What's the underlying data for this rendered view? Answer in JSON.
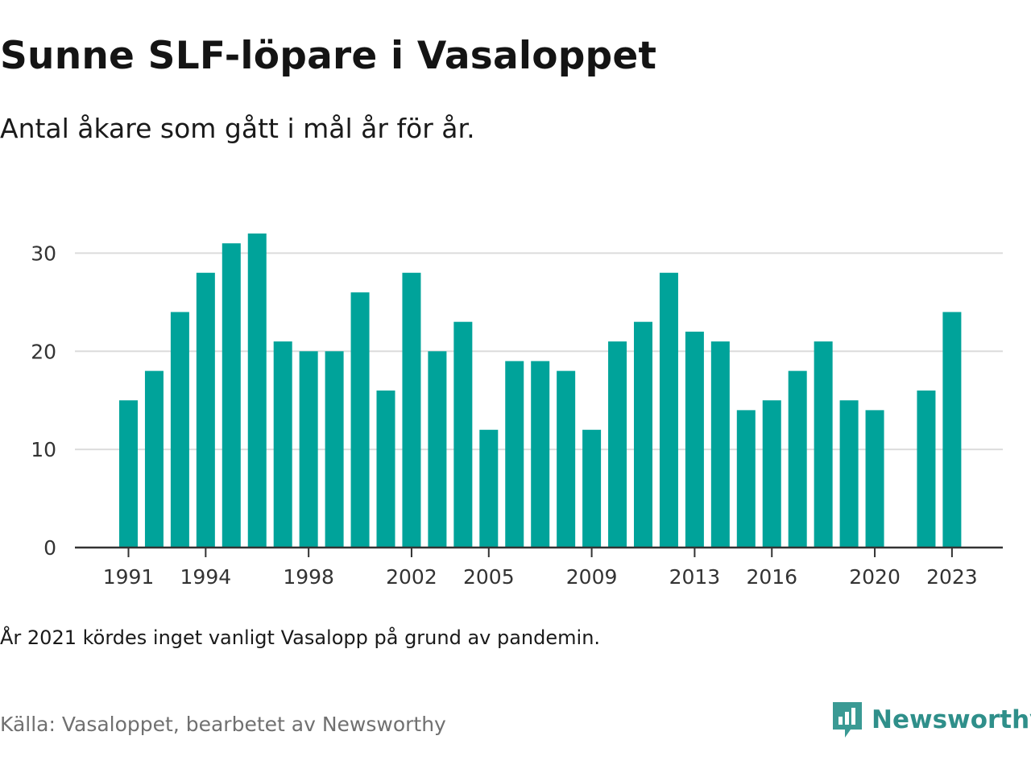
{
  "title": "Sunne SLF-löpare i Vasaloppet",
  "subtitle": "Antal åkare som gått i mål år för år.",
  "note": "År 2021 kördes inget vanligt Vasalopp på grund av pandemin.",
  "source": "Källa: Vasaloppet, bearbetet av Newsworthy",
  "brand": {
    "name": "Newsworthy",
    "icon": "newsworthy-logo-icon",
    "color": "#3a9a94"
  },
  "chart_data": {
    "type": "bar",
    "bar_color": "#00a39a",
    "title": "Sunne SLF-löpare i Vasaloppet",
    "xlabel": "",
    "ylabel": "",
    "ylim": [
      0,
      32
    ],
    "grid": true,
    "yticks": [
      0,
      10,
      20,
      30
    ],
    "xticks": [
      "1991",
      "1994",
      "1998",
      "2002",
      "2005",
      "2009",
      "2013",
      "2016",
      "2020",
      "2023"
    ],
    "categories": [
      "1991",
      "1992",
      "1993",
      "1994",
      "1995",
      "1996",
      "1997",
      "1998",
      "1999",
      "2000",
      "2001",
      "2002",
      "2003",
      "2004",
      "2005",
      "2006",
      "2007",
      "2008",
      "2009",
      "2010",
      "2011",
      "2012",
      "2013",
      "2014",
      "2015",
      "2016",
      "2017",
      "2018",
      "2019",
      "2020",
      "2021",
      "2022",
      "2023"
    ],
    "values": [
      15,
      18,
      24,
      28,
      31,
      32,
      21,
      20,
      20,
      26,
      16,
      28,
      20,
      23,
      12,
      19,
      19,
      18,
      12,
      21,
      23,
      28,
      22,
      21,
      14,
      15,
      18,
      21,
      15,
      14,
      null,
      16,
      24
    ]
  }
}
